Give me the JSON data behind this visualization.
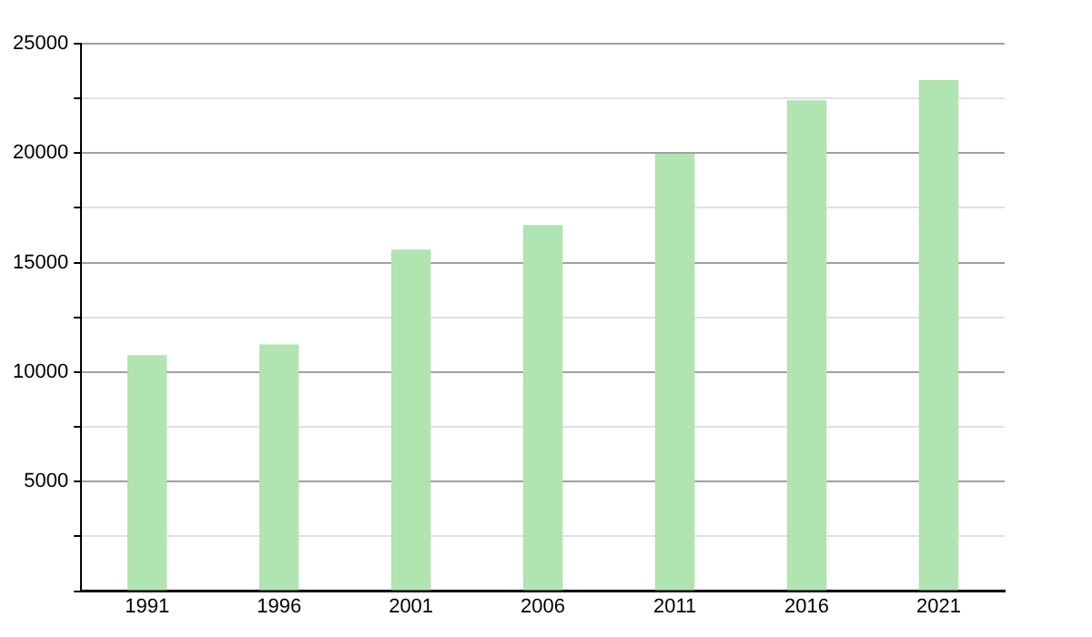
{
  "chart_data": {
    "type": "bar",
    "categories": [
      "1991",
      "1996",
      "2001",
      "2006",
      "2011",
      "2016",
      "2021"
    ],
    "values": [
      10780,
      11270,
      15600,
      16720,
      19970,
      22410,
      23340
    ],
    "color": "#b0e4b0",
    "ylim": [
      0,
      25000
    ],
    "yticks": [
      {
        "value": 0,
        "label": null
      },
      {
        "value": 2500,
        "label": null
      },
      5000,
      {
        "value": 7500,
        "label": null
      },
      10000,
      {
        "value": 12500,
        "label": null
      },
      15000,
      {
        "value": 17500,
        "label": null
      },
      20000,
      {
        "value": 22500,
        "label": null
      },
      25000
    ],
    "grid": "y"
  }
}
